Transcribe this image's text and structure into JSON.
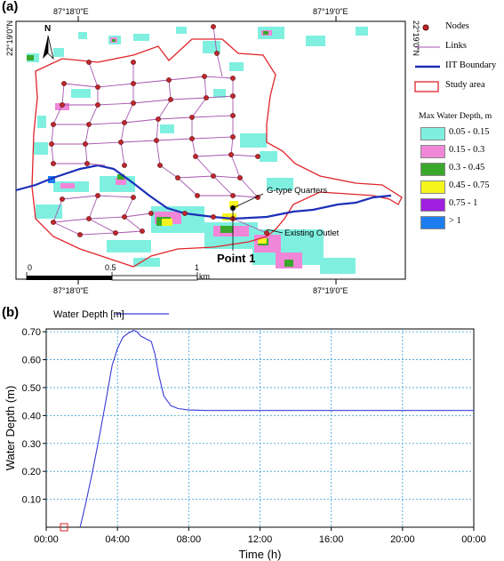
{
  "panel_a": {
    "label": "(a)",
    "coords": {
      "top_left": "87°18'0\"E",
      "top_right": "87°19'0\"E",
      "bottom_left": "87°18'0\"E",
      "bottom_right": "87°19'0\"E",
      "left_vertical": "22°19'0\"N",
      "right_vertical": "22°19'0\"N"
    },
    "north_label": "N",
    "annotations": {
      "g_type": "G-type Quarters",
      "existing_outlet": "Existing Outlet",
      "point1": "Point 1"
    },
    "scale_bar": {
      "zero": "0",
      "half": "0.5",
      "one": "1",
      "unit": "km"
    },
    "legend": {
      "items": [
        {
          "label": "Nodes",
          "type": "node",
          "color": "#c0272d"
        },
        {
          "label": "Links",
          "type": "link",
          "color": "#a855b0"
        },
        {
          "label": "IIT Boundary",
          "type": "boundary",
          "color": "#1c2fb8"
        },
        {
          "label": "Study area",
          "type": "area",
          "color": "#e0242b"
        }
      ],
      "depth_title": "Max Water Depth, m",
      "depth_classes": [
        {
          "label": "0.05 - 0.15",
          "color": "#7ff0e0"
        },
        {
          "label": "0.15 - 0.3",
          "color": "#f086d8"
        },
        {
          "label": "0.3 - 0.45",
          "color": "#3aa82a"
        },
        {
          "label": "0.45 - 0.75",
          "color": "#f5f51e"
        },
        {
          "label": "0.75 - 1",
          "color": "#a020e0"
        },
        {
          "label": "> 1",
          "color": "#1e7ef0"
        }
      ]
    }
  },
  "panel_b": {
    "label": "(b)",
    "legend_label": "Water Depth  [m]",
    "line_color": "#3a3ad6"
  },
  "chart_data": {
    "type": "line",
    "xlabel": "Time (h)",
    "ylabel": "Water Depth (m)",
    "x_ticks": [
      "00:00",
      "04:00",
      "08:00",
      "12:00",
      "16:00",
      "20:00",
      "00:00"
    ],
    "y_ticks": [
      "0.10",
      "0.20",
      "0.30",
      "0.40",
      "0.50",
      "0.60",
      "0.70"
    ],
    "xlim": [
      0,
      24
    ],
    "ylim": [
      0,
      0.71
    ],
    "grid": true,
    "series": [
      {
        "name": "Water Depth  [m]",
        "x": [
          1.9,
          2.2,
          2.6,
          3.0,
          3.4,
          3.7,
          4.0,
          4.3,
          4.6,
          4.9,
          5.1,
          5.3,
          5.6,
          5.9,
          6.1,
          6.3,
          6.6,
          7.0,
          7.4,
          8.0,
          9.0,
          12.0,
          16.0,
          20.0,
          24.0
        ],
        "y": [
          0.0,
          0.08,
          0.2,
          0.33,
          0.47,
          0.58,
          0.64,
          0.68,
          0.695,
          0.705,
          0.7,
          0.685,
          0.675,
          0.665,
          0.62,
          0.55,
          0.47,
          0.435,
          0.425,
          0.42,
          0.418,
          0.418,
          0.418,
          0.418,
          0.418
        ]
      }
    ],
    "marker": {
      "x": 1.0,
      "y": 0.0
    }
  }
}
